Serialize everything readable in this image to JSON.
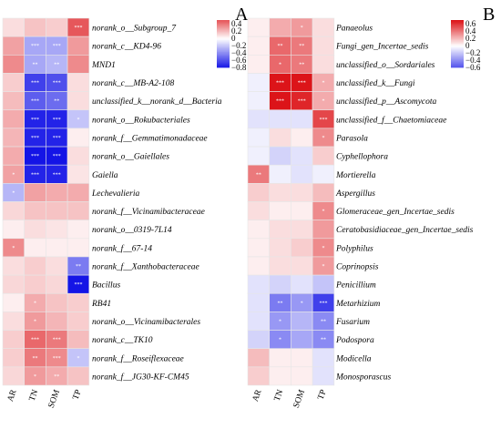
{
  "chart_data": [
    {
      "type": "heatmap",
      "panel": "A",
      "columns": [
        "AR",
        "TN",
        "SOM",
        "TP"
      ],
      "rows": [
        "norank_o__Subgroup_7",
        "norank_c__KD4-96",
        "MND1",
        "norank_c__MB-A2-108",
        "unclassified_k__norank_d__Bacteria",
        "norank_o__Rokubacteriales",
        "norank_f__Gemmatimonadaceae",
        "norank_o__Gaiellales",
        "Gaiella",
        "Lechevalieria",
        "norank_f__Vicinamibacteraceae",
        "norank_o__0319-7L14",
        "norank_f__67-14",
        "norank_f__Xanthobacteraceae",
        "Bacillus",
        "RB41",
        "norank_o__Vicinamibacterales",
        "norank_c__TK10",
        "norank_f__Roseiflexaceae",
        "norank_f__JG30-KF-CM45"
      ],
      "values": [
        [
          0.1,
          0.18,
          0.15,
          0.5
        ],
        [
          0.28,
          -0.3,
          -0.3,
          0.3
        ],
        [
          0.35,
          -0.3,
          -0.25,
          0.35
        ],
        [
          0.15,
          -0.65,
          -0.6,
          0.1
        ],
        [
          0.2,
          -0.55,
          -0.5,
          0.1
        ],
        [
          0.25,
          -0.75,
          -0.75,
          -0.2
        ],
        [
          0.22,
          -0.75,
          -0.75,
          0.05
        ],
        [
          0.25,
          -0.8,
          -0.8,
          0.1
        ],
        [
          0.28,
          -0.75,
          -0.75,
          0.08
        ],
        [
          -0.25,
          0.28,
          0.25,
          0.25
        ],
        [
          0.12,
          0.18,
          0.18,
          0.18
        ],
        [
          0.05,
          0.1,
          0.08,
          0.05
        ],
        [
          0.35,
          0.05,
          0.05,
          0.05
        ],
        [
          0.1,
          0.15,
          0.1,
          -0.45
        ],
        [
          0.12,
          0.15,
          0.12,
          -0.8
        ],
        [
          0.05,
          0.25,
          0.18,
          0.15
        ],
        [
          0.1,
          0.3,
          0.22,
          0.15
        ],
        [
          0.15,
          0.45,
          0.4,
          0.2
        ],
        [
          0.15,
          0.4,
          0.35,
          -0.2
        ],
        [
          0.12,
          0.3,
          0.25,
          0.18
        ]
      ],
      "stars": [
        [
          "",
          "",
          "",
          "***"
        ],
        [
          "",
          "***",
          "***",
          ""
        ],
        [
          "",
          "**",
          "**",
          ""
        ],
        [
          "",
          "***",
          "***",
          ""
        ],
        [
          "",
          "***",
          "**",
          ""
        ],
        [
          "",
          "***",
          "***",
          "*"
        ],
        [
          "",
          "***",
          "***",
          ""
        ],
        [
          "",
          "***",
          "***",
          ""
        ],
        [
          "*",
          "***",
          "***",
          ""
        ],
        [
          "*",
          "",
          "",
          ""
        ],
        [
          "",
          "",
          "",
          ""
        ],
        [
          "",
          "",
          "",
          ""
        ],
        [
          "*",
          "",
          "",
          ""
        ],
        [
          "",
          "",
          "",
          "**"
        ],
        [
          "",
          "",
          "",
          "***"
        ],
        [
          "",
          "*",
          "",
          ""
        ],
        [
          "",
          "*",
          "",
          ""
        ],
        [
          "",
          "***",
          "***",
          ""
        ],
        [
          "",
          "**",
          "***",
          "*"
        ],
        [
          "",
          "*",
          "**",
          ""
        ]
      ],
      "colorbar": {
        "ticks": [
          0.4,
          0.2,
          0,
          -0.2,
          -0.4,
          -0.6,
          -0.8
        ],
        "range": [
          -0.8,
          0.5
        ]
      }
    },
    {
      "type": "heatmap",
      "panel": "B",
      "columns": [
        "AR",
        "TN",
        "SOM",
        "TP"
      ],
      "rows": [
        "Panaeolus",
        "Fungi_gen_Incertae_sedis",
        "unclassified_o__Sordariales",
        "unclassified_k__Fungi",
        "unclassified_p__Ascomycota",
        "unclassified_f__Chaetomiaceae",
        "Parasola",
        "Cyphellophora",
        "Mortierella",
        "Aspergillus",
        "Glomeraceae_gen_Incertae_sedis",
        "Ceratobasidiaceae_gen_Incertae_sedis",
        "Polyphilus",
        "Coprinopsis",
        "Penicillium",
        "Metarhizium",
        "Fusarium",
        "Podospora",
        "Modicella",
        "Monosporascus"
      ],
      "values": [
        [
          0.05,
          0.25,
          0.3,
          0.1
        ],
        [
          0.05,
          0.45,
          0.4,
          0.1
        ],
        [
          0.05,
          0.45,
          0.4,
          0.1
        ],
        [
          -0.05,
          0.7,
          0.7,
          0.25
        ],
        [
          -0.05,
          0.7,
          0.65,
          0.25
        ],
        [
          -0.1,
          -0.1,
          -0.1,
          0.55
        ],
        [
          -0.05,
          0.1,
          0.05,
          0.35
        ],
        [
          -0.05,
          -0.15,
          -0.1,
          0.15
        ],
        [
          0.4,
          -0.05,
          -0.1,
          -0.05
        ],
        [
          0.15,
          0.1,
          0.1,
          0.2
        ],
        [
          0.1,
          0.05,
          0.05,
          0.35
        ],
        [
          0.05,
          0.1,
          0.1,
          0.3
        ],
        [
          0.05,
          0.1,
          0.15,
          0.35
        ],
        [
          0.05,
          0.1,
          0.1,
          0.3
        ],
        [
          -0.1,
          -0.15,
          -0.1,
          -0.2
        ],
        [
          -0.1,
          -0.45,
          -0.35,
          -0.65
        ],
        [
          -0.1,
          -0.35,
          -0.25,
          -0.4
        ],
        [
          -0.15,
          -0.4,
          -0.3,
          -0.4
        ],
        [
          0.2,
          0.05,
          0.05,
          -0.1
        ],
        [
          0.15,
          0.05,
          0.05,
          -0.1
        ]
      ],
      "stars": [
        [
          "",
          "",
          "*",
          ""
        ],
        [
          "",
          "**",
          "**",
          ""
        ],
        [
          "",
          "*",
          "**",
          ""
        ],
        [
          "",
          "***",
          "***",
          "*"
        ],
        [
          "",
          "***",
          "***",
          "*"
        ],
        [
          "",
          "",
          "",
          "***"
        ],
        [
          "",
          "",
          "",
          "*"
        ],
        [
          "",
          "",
          "",
          ""
        ],
        [
          "**",
          "",
          "",
          ""
        ],
        [
          "",
          "",
          "",
          ""
        ],
        [
          "",
          "",
          "",
          "*"
        ],
        [
          "",
          "",
          "",
          ""
        ],
        [
          "",
          "",
          "",
          "*"
        ],
        [
          "",
          "",
          "",
          "*"
        ],
        [
          "",
          "",
          "",
          ""
        ],
        [
          "",
          "**",
          "*",
          "***"
        ],
        [
          "",
          "*",
          "",
          "**"
        ],
        [
          "",
          "*",
          "",
          "**"
        ],
        [
          "",
          "",
          "",
          ""
        ],
        [
          "",
          "",
          "",
          ""
        ]
      ],
      "colorbar": {
        "ticks": [
          0.6,
          0.4,
          0.2,
          0,
          -0.2,
          -0.4,
          -0.6
        ],
        "range": [
          -0.6,
          0.7
        ]
      }
    }
  ]
}
